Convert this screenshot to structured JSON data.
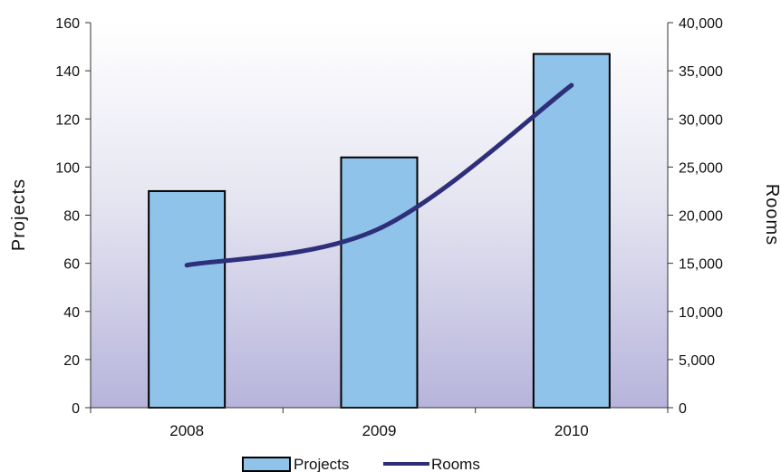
{
  "chart_data": {
    "type": "bar",
    "categories": [
      "2008",
      "2009",
      "2010"
    ],
    "series": [
      {
        "name": "Projects",
        "type": "bar",
        "axis": "left",
        "values": [
          90,
          104,
          147
        ],
        "color": "#8fc3ea"
      },
      {
        "name": "Rooms",
        "type": "line",
        "axis": "right",
        "values": [
          14800,
          18600,
          33500
        ],
        "color": "#2e2f7a"
      }
    ],
    "y_left": {
      "label": "Projects",
      "ylim": [
        0,
        160
      ],
      "ticks": [
        "0",
        "20",
        "40",
        "60",
        "80",
        "100",
        "120",
        "140",
        "160"
      ]
    },
    "y_right": {
      "label": "Rooms",
      "ylim": [
        0,
        40000
      ],
      "ticks": [
        "0",
        "5,000",
        "10,000",
        "15,000",
        "20,000",
        "25,000",
        "30,000",
        "35,000",
        "40,000"
      ]
    },
    "legend": {
      "placement": "bottom",
      "items": [
        "Projects",
        "Rooms"
      ]
    },
    "grid": false,
    "background_gradient": [
      "#ffffff",
      "#b9b6dc"
    ]
  }
}
